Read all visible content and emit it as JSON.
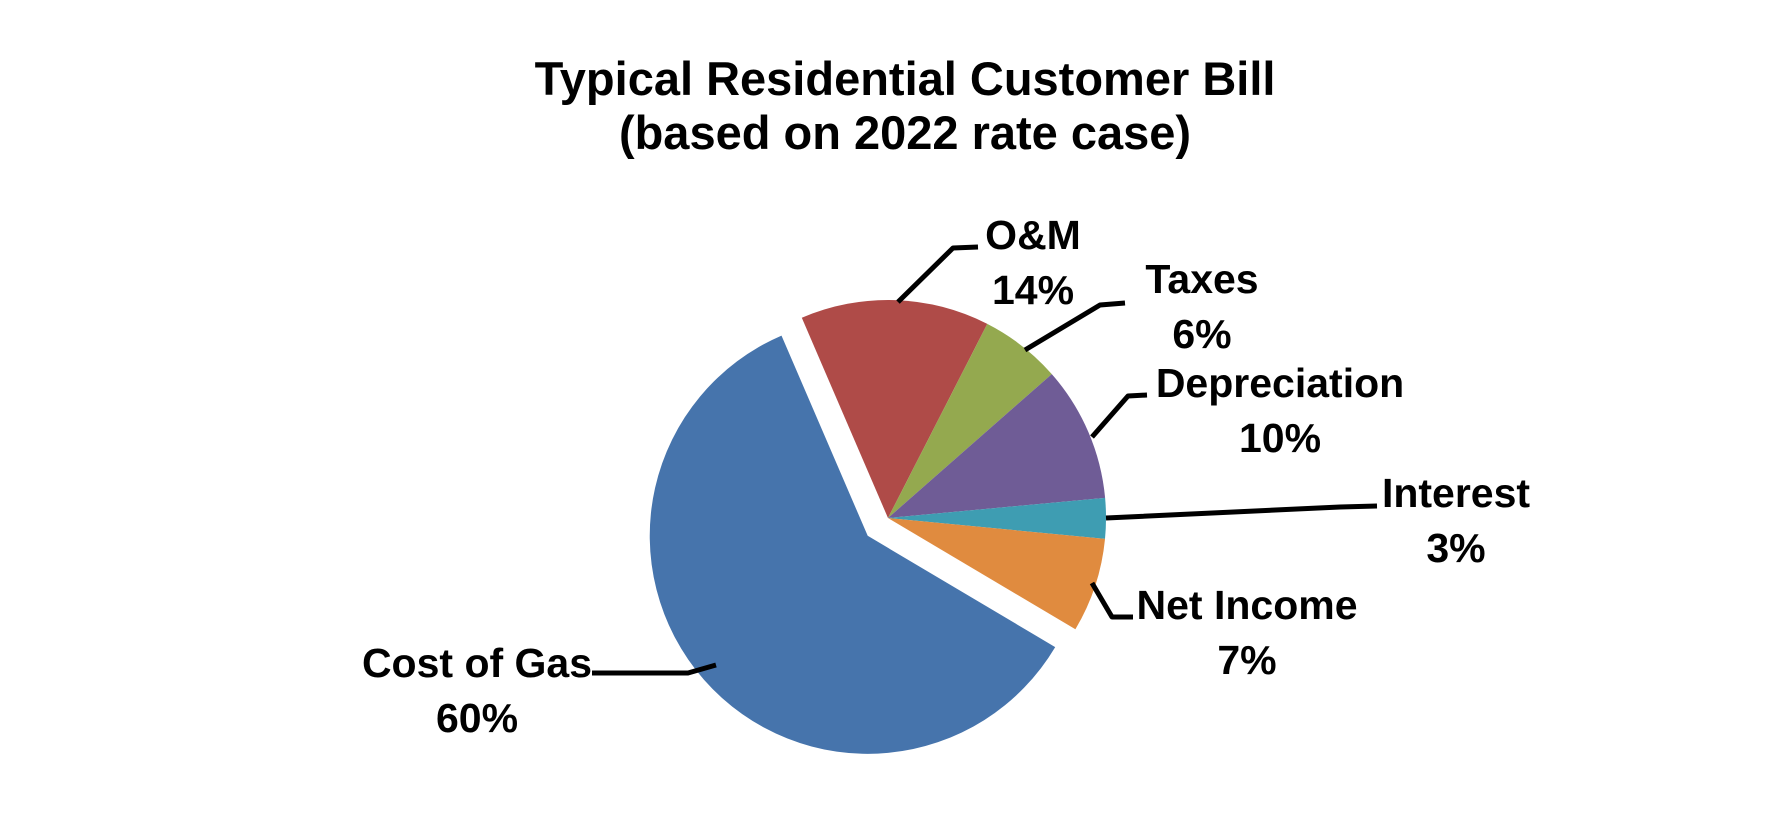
{
  "title": {
    "line1": "Typical Residential Customer Bill",
    "line2": "(based on 2022 rate case)"
  },
  "chart_data": {
    "type": "pie",
    "title": "Typical Residential Customer Bill (based on 2022 rate case)",
    "legend": "none",
    "label_style": "outside labels with black leader lines, name above percent",
    "start_angle_deg_cw_from_top": -23.3,
    "slices": [
      {
        "label": "O&M",
        "value": 14,
        "pct_label": "14%",
        "color": "#AF4B48",
        "exploded": false
      },
      {
        "label": "Taxes",
        "value": 6,
        "pct_label": "6%",
        "color": "#94A94F",
        "exploded": false
      },
      {
        "label": "Depreciation",
        "value": 10,
        "pct_label": "10%",
        "color": "#6F5C96",
        "exploded": false
      },
      {
        "label": "Interest",
        "value": 3,
        "pct_label": "3%",
        "color": "#3E9DB2",
        "exploded": false
      },
      {
        "label": "Net Income",
        "value": 7,
        "pct_label": "7%",
        "color": "#E08B3F",
        "exploded": false
      },
      {
        "label": "Cost of Gas",
        "value": 60,
        "pct_label": "60%",
        "color": "#4674AC",
        "exploded": true
      }
    ],
    "leader_line_color": "#000000",
    "background_color": "#FFFFFF",
    "text_color": "#000000"
  }
}
